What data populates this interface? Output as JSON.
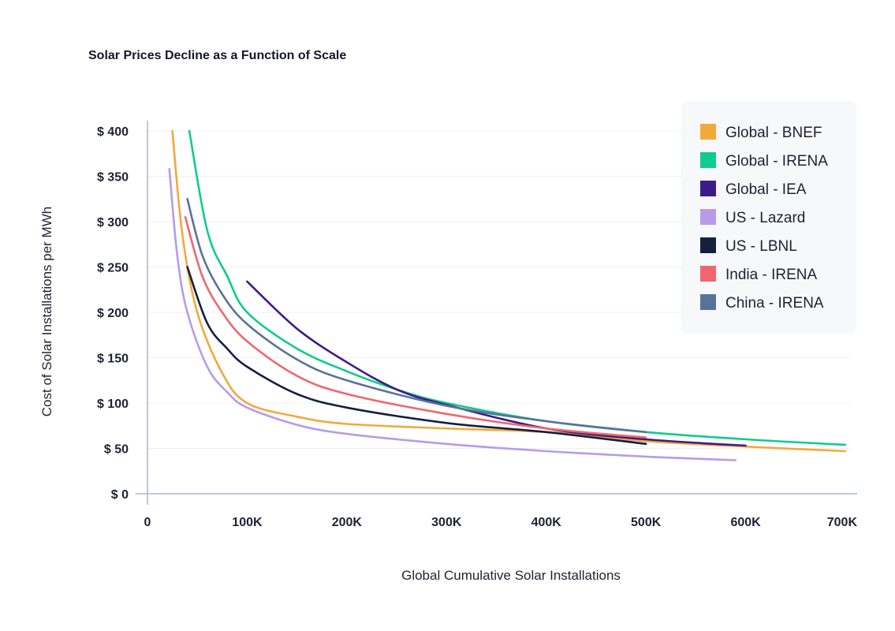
{
  "chart_data": {
    "type": "line",
    "title": "Solar Prices Decline as a Function of Scale",
    "xlabel": "Global Cumulative Solar Installations",
    "ylabel": "Cost of Solar Installations per MWh",
    "xlim": [
      0,
      700000
    ],
    "ylim": [
      0,
      400
    ],
    "x_ticks": [
      {
        "value": 0,
        "label": "0"
      },
      {
        "value": 100000,
        "label": "100K"
      },
      {
        "value": 200000,
        "label": "200K"
      },
      {
        "value": 300000,
        "label": "300K"
      },
      {
        "value": 400000,
        "label": "400K"
      },
      {
        "value": 500000,
        "label": "500K"
      },
      {
        "value": 600000,
        "label": "600K"
      },
      {
        "value": 700000,
        "label": "700K"
      }
    ],
    "y_ticks": [
      {
        "value": 0,
        "label": "$ 0"
      },
      {
        "value": 50,
        "label": "$ 50"
      },
      {
        "value": 100,
        "label": "$ 100"
      },
      {
        "value": 150,
        "label": "$ 150"
      },
      {
        "value": 200,
        "label": "$ 200"
      },
      {
        "value": 250,
        "label": "$ 250"
      },
      {
        "value": 300,
        "label": "$ 300"
      },
      {
        "value": 350,
        "label": "$ 350"
      },
      {
        "value": 400,
        "label": "$ 400"
      }
    ],
    "grid": true,
    "legend_position": "top-right",
    "series": [
      {
        "name": "Global - BNEF",
        "color": "#f2a93b",
        "x": [
          25000,
          35000,
          50000,
          75000,
          100000,
          150000,
          200000,
          300000,
          400000,
          500000,
          600000,
          700000
        ],
        "y": [
          400,
          286,
          200,
          133,
          100,
          85,
          77,
          72,
          68,
          58,
          52,
          47
        ]
      },
      {
        "name": "Global - IRENA",
        "color": "#0fcc8c",
        "x": [
          42000,
          60000,
          80000,
          100000,
          150000,
          200000,
          250000,
          300000,
          400000,
          500000,
          600000,
          700000
        ],
        "y": [
          400,
          290,
          240,
          200,
          160,
          135,
          115,
          100,
          80,
          68,
          60,
          54
        ]
      },
      {
        "name": "Global - IEA",
        "color": "#3d1a8a",
        "x": [
          100000,
          150000,
          200000,
          250000,
          300000,
          400000,
          500000,
          600000
        ],
        "y": [
          234,
          182,
          145,
          115,
          98,
          72,
          60,
          53
        ]
      },
      {
        "name": "US - Lazard",
        "color": "#b89be8",
        "x": [
          22000,
          30000,
          40000,
          60000,
          80000,
          100000,
          150000,
          200000,
          300000,
          400000,
          500000,
          590000
        ],
        "y": [
          358,
          262,
          200,
          140,
          112,
          95,
          76,
          66,
          55,
          47,
          41,
          37
        ]
      },
      {
        "name": "US - LBNL",
        "color": "#13203f",
        "x": [
          40000,
          60000,
          80000,
          100000,
          150000,
          200000,
          300000,
          400000,
          500000
        ],
        "y": [
          250,
          188,
          160,
          140,
          110,
          95,
          78,
          68,
          55
        ]
      },
      {
        "name": "India - IRENA",
        "color": "#f06670",
        "x": [
          38000,
          55000,
          75000,
          100000,
          150000,
          200000,
          300000,
          400000,
          500000
        ],
        "y": [
          305,
          240,
          200,
          168,
          130,
          110,
          88,
          72,
          62
        ]
      },
      {
        "name": "China - IRENA",
        "color": "#58739a",
        "x": [
          40000,
          55000,
          75000,
          100000,
          150000,
          200000,
          300000,
          400000,
          500000
        ],
        "y": [
          325,
          263,
          220,
          187,
          148,
          125,
          97,
          80,
          68
        ]
      }
    ]
  }
}
